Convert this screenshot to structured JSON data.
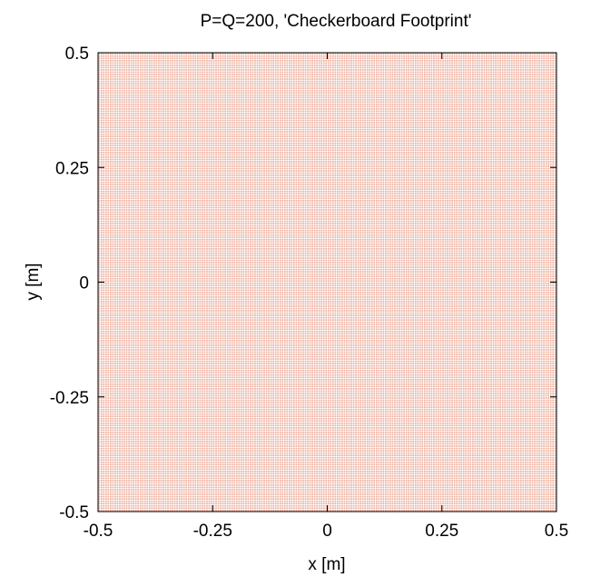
{
  "chart_data": {
    "type": "scatter",
    "title": "P=Q=200, 'Checkerboard Footprint'",
    "xlabel": "x [m]",
    "ylabel": "y [m]",
    "xlim": [
      -0.5,
      0.5
    ],
    "ylim": [
      -0.5,
      0.5
    ],
    "xticks": [
      -0.5,
      -0.25,
      0,
      0.25,
      0.5
    ],
    "xtick_labels": [
      "-0.5",
      "-0.25",
      "0",
      "0.25",
      "0.5"
    ],
    "yticks": [
      -0.5,
      -0.25,
      0,
      0.25,
      0.5
    ],
    "ytick_labels": [
      "-0.5",
      "-0.25",
      "0",
      "0.25",
      "0.5"
    ],
    "grid": false,
    "legend": "none",
    "series": [
      {
        "grid_points_per_axis": 200,
        "x_range": [
          -0.5,
          0.5
        ],
        "y_range": [
          -0.5,
          0.5
        ],
        "color": "#e07a5f"
      }
    ]
  }
}
